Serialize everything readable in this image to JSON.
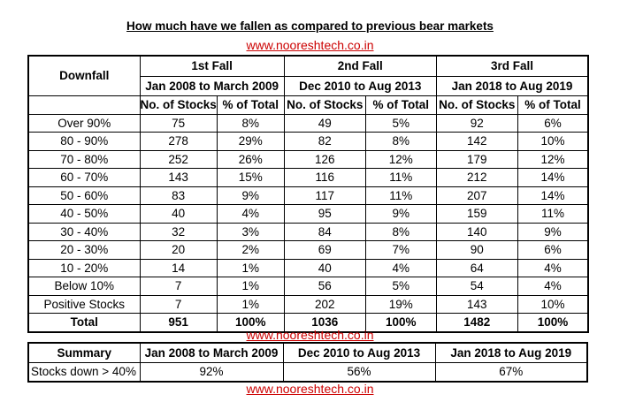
{
  "title": "How much have we fallen as compared to previous bear markets",
  "website": "www.nooreshtech.co.in",
  "main_table": {
    "downfall_header": "Downfall",
    "falls": [
      {
        "name": "1st Fall",
        "period": "Jan 2008 to March 2009"
      },
      {
        "name": "2nd Fall",
        "period": "Dec 2010 to Aug 2013"
      },
      {
        "name": "3rd Fall",
        "period": "Jan 2018 to Aug 2019"
      }
    ],
    "sub_headers": {
      "stocks": "No. of Stocks",
      "pct": "% of Total"
    },
    "rows": [
      {
        "range": "Over 90%",
        "v": [
          "75",
          "8%",
          "49",
          "5%",
          "92",
          "6%"
        ]
      },
      {
        "range": "80 - 90%",
        "v": [
          "278",
          "29%",
          "82",
          "8%",
          "142",
          "10%"
        ]
      },
      {
        "range": "70 - 80%",
        "v": [
          "252",
          "26%",
          "126",
          "12%",
          "179",
          "12%"
        ]
      },
      {
        "range": "60 - 70%",
        "v": [
          "143",
          "15%",
          "116",
          "11%",
          "212",
          "14%"
        ]
      },
      {
        "range": "50 - 60%",
        "v": [
          "83",
          "9%",
          "117",
          "11%",
          "207",
          "14%"
        ]
      },
      {
        "range": "40 - 50%",
        "v": [
          "40",
          "4%",
          "95",
          "9%",
          "159",
          "11%"
        ]
      },
      {
        "range": "30 - 40%",
        "v": [
          "32",
          "3%",
          "84",
          "8%",
          "140",
          "9%"
        ]
      },
      {
        "range": "20 - 30%",
        "v": [
          "20",
          "2%",
          "69",
          "7%",
          "90",
          "6%"
        ]
      },
      {
        "range": "10 - 20%",
        "v": [
          "14",
          "1%",
          "40",
          "4%",
          "64",
          "4%"
        ]
      },
      {
        "range": "Below 10%",
        "v": [
          "7",
          "1%",
          "56",
          "5%",
          "54",
          "4%"
        ]
      },
      {
        "range": "Positive Stocks",
        "v": [
          "7",
          "1%",
          "202",
          "19%",
          "143",
          "10%"
        ]
      }
    ],
    "total": {
      "label": "Total",
      "v": [
        "951",
        "100%",
        "1036",
        "100%",
        "1482",
        "100%"
      ]
    }
  },
  "summary_table": {
    "header": "Summary",
    "periods": [
      "Jan 2008 to March 2009",
      "Dec 2010 to Aug 2013",
      "Jan 2018 to Aug 2019"
    ],
    "row_label": "Stocks down > 40%",
    "values": [
      "92%",
      "56%",
      "67%"
    ]
  }
}
